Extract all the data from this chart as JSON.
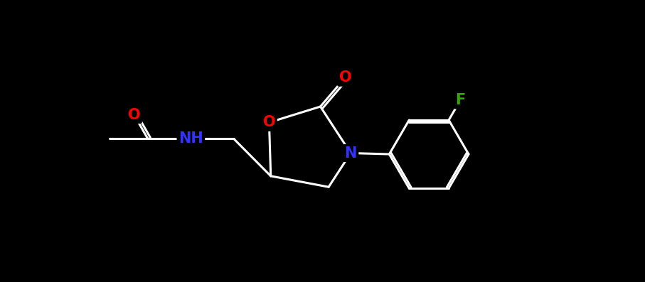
{
  "background": "#000000",
  "bond_color": "#ffffff",
  "colors": {
    "O": "#ff0000",
    "N": "#3333ff",
    "F": "#33aa00",
    "C": "#ffffff"
  },
  "figsize": [
    9.07,
    3.97
  ],
  "dpi": 100
}
